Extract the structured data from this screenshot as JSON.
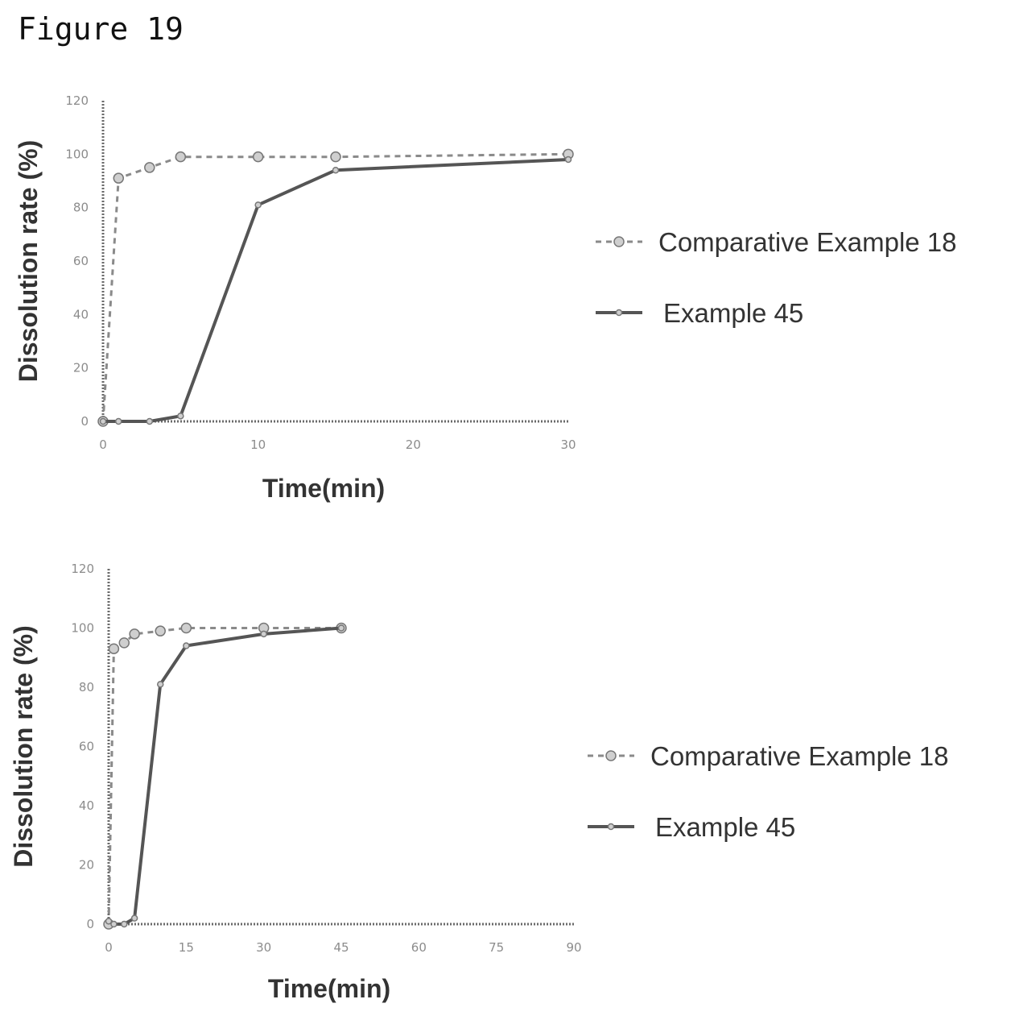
{
  "figure_title": "Figure 19",
  "chart_data": [
    {
      "type": "line",
      "xlabel": "Time(min)",
      "ylabel": "Dissolution rate (%)",
      "xlim": [
        0,
        30
      ],
      "ylim": [
        0,
        120
      ],
      "xticks": [
        0,
        10,
        20,
        30
      ],
      "yticks": [
        0,
        20,
        40,
        60,
        80,
        100,
        120
      ],
      "legend_position": "right",
      "series": [
        {
          "name": "Comparative Example 18",
          "style": "dashed",
          "x": [
            0,
            1,
            3,
            5,
            10,
            15,
            30
          ],
          "y": [
            0,
            91,
            95,
            99,
            99,
            99,
            100
          ]
        },
        {
          "name": "Example 45",
          "style": "solid",
          "x": [
            0,
            1,
            3,
            5,
            10,
            15,
            30
          ],
          "y": [
            0,
            0,
            0,
            2,
            81,
            94,
            98
          ]
        }
      ]
    },
    {
      "type": "line",
      "xlabel": "Time(min)",
      "ylabel": "Dissolution rate (%)",
      "xlim": [
        0,
        90
      ],
      "ylim": [
        0,
        120
      ],
      "xticks": [
        0,
        15,
        30,
        45,
        60,
        75,
        90
      ],
      "yticks": [
        0,
        20,
        40,
        60,
        80,
        100,
        120
      ],
      "legend_position": "right",
      "series": [
        {
          "name": "Comparative Example 18",
          "style": "dashed",
          "x": [
            0,
            1,
            3,
            5,
            10,
            15,
            30,
            45
          ],
          "y": [
            0,
            93,
            95,
            98,
            99,
            100,
            100,
            100
          ]
        },
        {
          "name": "Example 45",
          "style": "solid",
          "x": [
            0,
            1,
            3,
            5,
            10,
            15,
            30,
            45
          ],
          "y": [
            1,
            0,
            0,
            2,
            81,
            94,
            98,
            100
          ]
        }
      ]
    }
  ]
}
